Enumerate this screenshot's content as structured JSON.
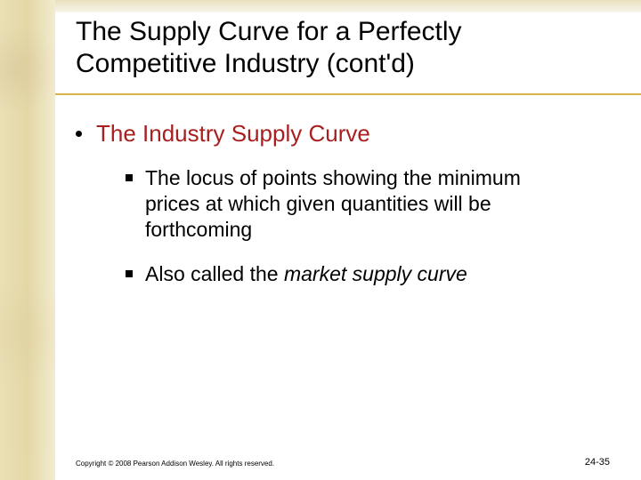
{
  "colors": {
    "heading_red": "#a81f1f",
    "rule_yellow": "#d6b84a",
    "strip_gradient_start": "#d9c77a",
    "strip_gradient_end": "#e8dca8",
    "text_black": "#000000",
    "background": "#ffffff"
  },
  "typography": {
    "title_fontsize": 30,
    "lvl1_fontsize": 26,
    "lvl2_fontsize": 23,
    "footer_copyright_fontsize": 8,
    "footer_pagenum_fontsize": 11,
    "font_family": "Arial"
  },
  "title": "The Supply Curve for a Perfectly Competitive Industry (cont'd)",
  "bullets": {
    "lvl1": {
      "text": "The Industry Supply Curve"
    },
    "lvl2": [
      {
        "text": "The locus of points showing the minimum prices at which given quantities will be forthcoming",
        "italic_segment": null
      },
      {
        "prefix": "Also called the ",
        "italic_segment": "market supply curve"
      }
    ]
  },
  "footer": {
    "copyright": "Copyright © 2008 Pearson Addison Wesley. All rights reserved.",
    "pagenum": "24-35"
  }
}
